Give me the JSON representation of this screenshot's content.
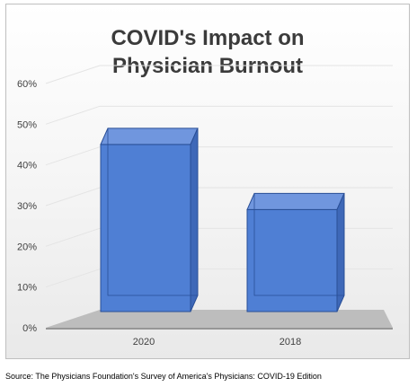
{
  "chart_data": {
    "type": "bar",
    "title_lines": [
      "COVID's Impact on",
      "Physician Burnout"
    ],
    "categories": [
      "2020",
      "2018"
    ],
    "values": [
      49,
      33
    ],
    "ylim": [
      0,
      60
    ],
    "yticks": [
      0,
      10,
      20,
      30,
      40,
      50,
      60
    ],
    "ytick_labels": [
      "0%",
      "10%",
      "20%",
      "30%",
      "40%",
      "50%",
      "60%"
    ],
    "grid": true,
    "legend": "none",
    "bar_color": "#4f7fd4"
  },
  "source": "Source: The Physicians Foundation's Survey of America's Physicians: COVID-19 Edition"
}
